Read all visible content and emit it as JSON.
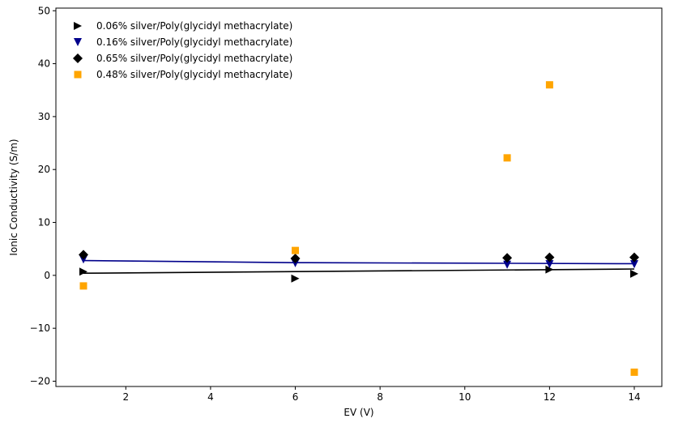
{
  "chart_data": {
    "type": "scatter",
    "title": "",
    "xlabel": "EV (V)",
    "ylabel": "Ionic Conductivity (S/m)",
    "xlim": [
      0.35,
      14.65
    ],
    "ylim": [
      -21,
      50.5
    ],
    "xticks": [
      2,
      4,
      6,
      8,
      10,
      12,
      14
    ],
    "yticks": [
      -20,
      -10,
      0,
      10,
      20,
      30,
      40,
      50
    ],
    "grid": false,
    "legend_position": "top-left",
    "series": [
      {
        "name": "0.06% silver/Poly(glycidyl methacrylate)",
        "marker": "triangle-right",
        "color": "#000000",
        "x": [
          1,
          6,
          12,
          14
        ],
        "y": [
          0.7,
          -0.6,
          1.1,
          0.3
        ],
        "fit": {
          "x": [
            1,
            14
          ],
          "y": [
            0.4,
            1.2
          ],
          "color": "#000000"
        }
      },
      {
        "name": "0.16% silver/Poly(glycidyl methacrylate)",
        "marker": "triangle-down",
        "color": "#00008b",
        "x": [
          1,
          6,
          11,
          12,
          14
        ],
        "y": [
          3.0,
          2.3,
          2.0,
          2.1,
          2.1
        ],
        "fit": {
          "x": [
            1,
            6,
            14
          ],
          "y": [
            2.8,
            2.4,
            2.2
          ],
          "color": "#00008b"
        }
      },
      {
        "name": "0.65% silver/Poly(glycidyl methacrylate)",
        "marker": "diamond",
        "color": "#000000",
        "x": [
          1,
          6,
          11,
          12,
          14
        ],
        "y": [
          3.9,
          3.2,
          3.3,
          3.4,
          3.4
        ]
      },
      {
        "name": "0.48% silver/Poly(glycidyl methacrylate)",
        "marker": "square",
        "color": "#ffa500",
        "x": [
          1,
          6,
          11,
          12,
          14
        ],
        "y": [
          -2.0,
          4.7,
          22.2,
          36.0,
          -18.3
        ]
      }
    ]
  }
}
